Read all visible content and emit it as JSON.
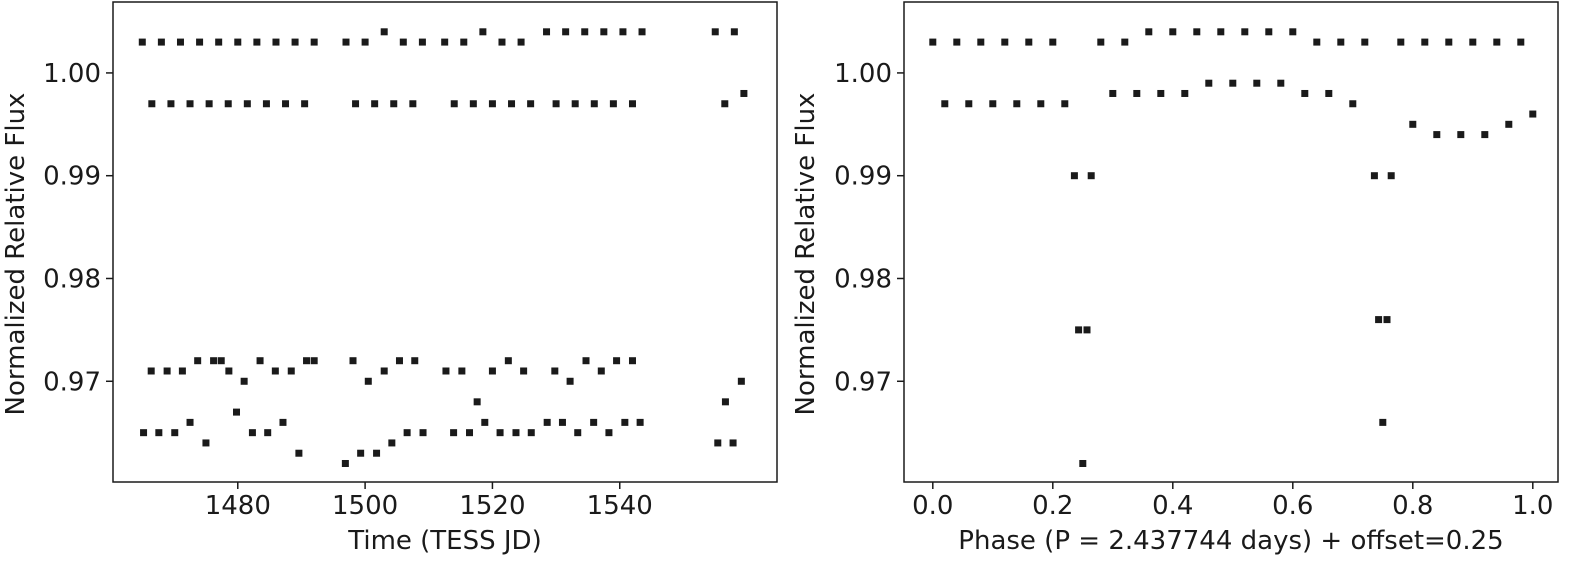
{
  "chart_data": [
    {
      "type": "scatter",
      "xlabel": "Time (TESS JD)",
      "ylabel": "Normalized Relative Flux",
      "xlim": [
        1460.4,
        1564.7
      ],
      "ylim": [
        0.9602,
        1.0069
      ],
      "xticks": [
        1480,
        1500,
        1520,
        1540
      ],
      "yticks": [
        {
          "value": 1,
          "label": "1.00"
        },
        0.99,
        0.98,
        0.97
      ],
      "series": [
        {
          "color": "#1a1a1a",
          "x": [
            1465,
            1466.5,
            1468,
            1469.5,
            1471,
            1472.5,
            1474,
            1475.5,
            1477,
            1478.5,
            1480,
            1481.5,
            1483,
            1484.5,
            1486,
            1487.5,
            1489,
            1490.5,
            1492,
            1497,
            1498.5,
            1500,
            1501.5,
            1503,
            1504.5,
            1506,
            1507.5,
            1509,
            1512.5,
            1514,
            1515.5,
            1517,
            1518.5,
            1520,
            1521.5,
            1523,
            1524.5,
            1526,
            1528.5,
            1530,
            1531.5,
            1533,
            1534.5,
            1536,
            1537.5,
            1539,
            1540.5,
            1542,
            1543.5,
            1555,
            1556.5,
            1558,
            1559.5,
            1465.2,
            1466.4,
            1467.6,
            1468.9,
            1470.1,
            1471.3,
            1472.5,
            1473.7,
            1475.0,
            1476.2,
            1477.4,
            1478.6,
            1479.8,
            1481.0,
            1482.3,
            1483.5,
            1484.7,
            1485.9,
            1487.1,
            1488.4,
            1489.6,
            1490.8,
            1492.0,
            1496.9,
            1498.1,
            1499.3,
            1500.5,
            1501.8,
            1503.0,
            1504.2,
            1505.4,
            1506.6,
            1507.8,
            1509.1,
            1512.7,
            1513.9,
            1515.2,
            1516.4,
            1517.6,
            1518.8,
            1520.0,
            1521.2,
            1522.5,
            1523.7,
            1524.9,
            1526.1,
            1528.6,
            1529.8,
            1531.0,
            1532.2,
            1533.4,
            1534.7,
            1535.9,
            1537.1,
            1538.3,
            1539.5,
            1540.8,
            1542.0,
            1543.2,
            1555.4,
            1556.6,
            1557.8,
            1559.1
          ],
          "y": [
            1.003,
            0.997,
            1.003,
            0.997,
            1.003,
            0.997,
            1.003,
            0.997,
            1.003,
            0.997,
            1.003,
            0.997,
            1.003,
            0.997,
            1.003,
            0.997,
            1.003,
            0.997,
            1.003,
            1.003,
            0.997,
            1.003,
            0.997,
            1.004,
            0.997,
            1.003,
            0.997,
            1.003,
            1.003,
            0.997,
            1.003,
            0.997,
            1.004,
            0.997,
            1.003,
            0.997,
            1.003,
            0.997,
            1.004,
            0.997,
            1.004,
            0.997,
            1.004,
            0.997,
            1.004,
            0.997,
            1.004,
            0.997,
            1.004,
            1.004,
            0.997,
            1.004,
            0.998,
            0.965,
            0.971,
            0.965,
            0.971,
            0.965,
            0.971,
            0.966,
            0.972,
            0.964,
            0.972,
            0.972,
            0.971,
            0.967,
            0.97,
            0.965,
            0.972,
            0.965,
            0.971,
            0.966,
            0.971,
            0.963,
            0.972,
            0.972,
            0.962,
            0.972,
            0.963,
            0.97,
            0.963,
            0.971,
            0.964,
            0.972,
            0.965,
            0.972,
            0.965,
            0.971,
            0.965,
            0.971,
            0.965,
            0.968,
            0.966,
            0.971,
            0.965,
            0.972,
            0.965,
            0.971,
            0.965,
            0.966,
            0.971,
            0.966,
            0.97,
            0.965,
            0.972,
            0.966,
            0.971,
            0.965,
            0.972,
            0.966,
            0.972,
            0.966,
            0.964,
            0.968,
            0.964,
            0.97
          ]
        }
      ]
    },
    {
      "type": "scatter",
      "xlabel": "Phase (P = 2.437744 days) + offset=0.25",
      "ylabel": "Normalized Relative Flux",
      "xlim": [
        -0.048,
        1.042
      ],
      "ylim": [
        0.9602,
        1.0069
      ],
      "xticks": [
        {
          "value": 0,
          "label": "0.0"
        },
        0.2,
        0.4,
        0.6,
        0.8,
        {
          "value": 1,
          "label": "1.0"
        }
      ],
      "yticks": [
        {
          "value": 1,
          "label": "1.00"
        },
        0.99,
        0.98,
        0.97
      ],
      "series": [
        {
          "color": "#1a1a1a",
          "x": [
            0,
            0.02,
            0.04,
            0.06,
            0.08,
            0.1,
            0.12,
            0.14,
            0.16,
            0.18,
            0.2,
            0.22,
            0.28,
            0.3,
            0.32,
            0.34,
            0.36,
            0.38,
            0.4,
            0.42,
            0.44,
            0.46,
            0.48,
            0.5,
            0.52,
            0.54,
            0.56,
            0.58,
            0.6,
            0.62,
            0.64,
            0.66,
            0.68,
            0.7,
            0.72,
            0.78,
            0.8,
            0.82,
            0.84,
            0.86,
            0.88,
            0.9,
            0.92,
            0.94,
            0.96,
            0.98,
            1.0,
            0.236,
            0.243,
            0.25,
            0.257,
            0.264,
            0.736,
            0.743,
            0.75,
            0.757,
            0.764
          ],
          "y": [
            1.003,
            0.997,
            1.003,
            0.997,
            1.003,
            0.997,
            1.003,
            0.997,
            1.003,
            0.997,
            1.003,
            0.997,
            1.003,
            0.998,
            1.003,
            0.998,
            1.004,
            0.998,
            1.004,
            0.998,
            1.004,
            0.999,
            1.004,
            0.999,
            1.004,
            0.999,
            1.004,
            0.999,
            1.004,
            0.998,
            1.003,
            0.998,
            1.003,
            0.997,
            1.003,
            1.003,
            0.995,
            1.003,
            0.994,
            1.003,
            0.994,
            1.003,
            0.994,
            1.003,
            0.995,
            1.003,
            0.996,
            0.99,
            0.975,
            0.962,
            0.975,
            0.99,
            0.99,
            0.976,
            0.966,
            0.976,
            0.99
          ]
        }
      ]
    }
  ]
}
